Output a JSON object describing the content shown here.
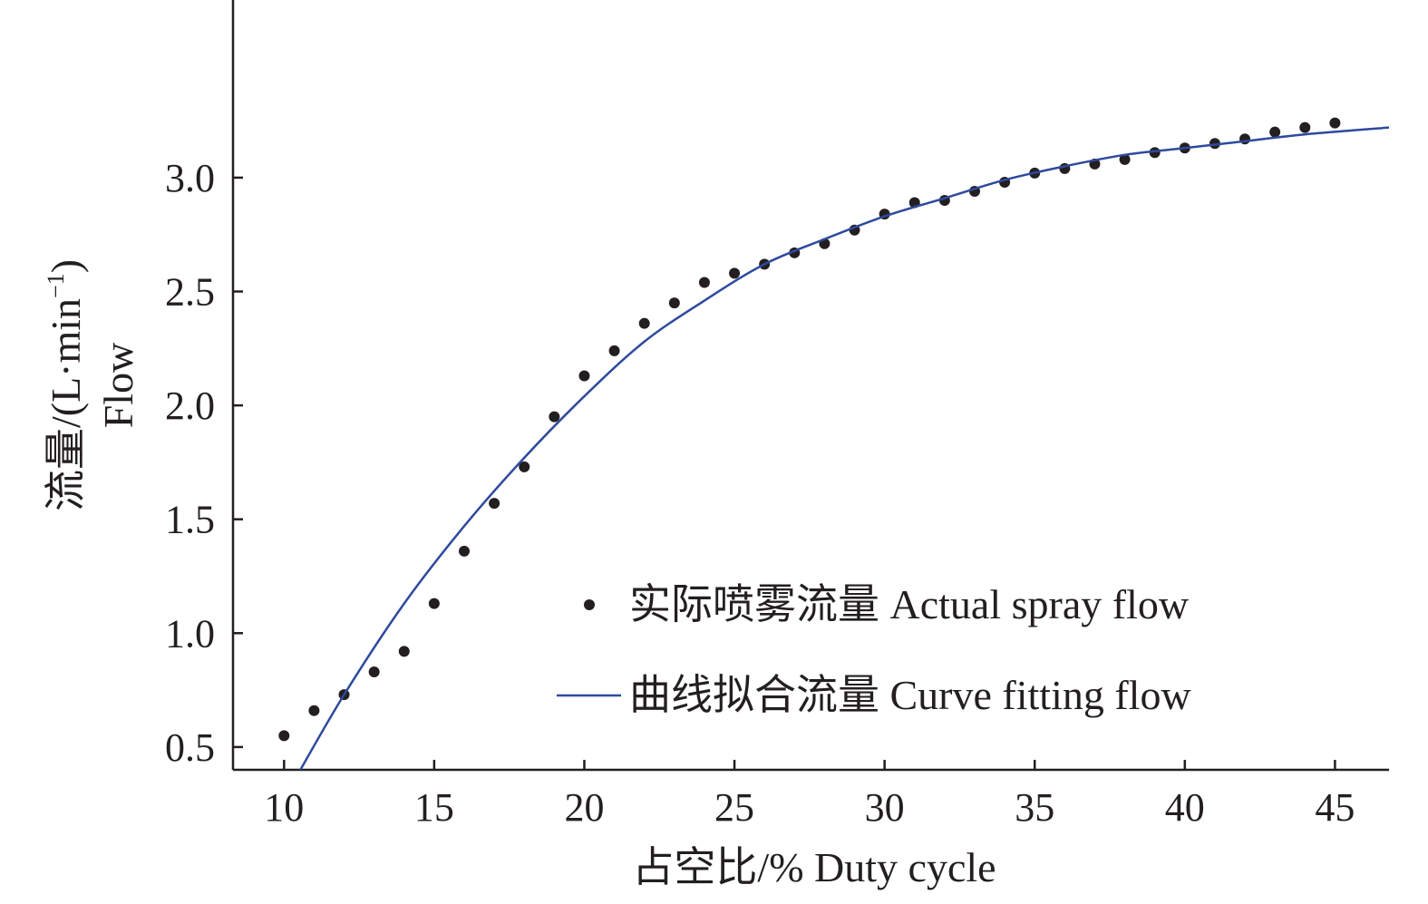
{
  "chart_data": {
    "type": "scatter",
    "xlabel": "占空比/% Duty cycle",
    "ylabel_line1": "流量/(L·min",
    "ylabel_sup": "−1",
    "ylabel_close": ")",
    "ylabel_line2": "Flow",
    "xlim": [
      8.3,
      46.8
    ],
    "ylim": [
      0.4,
      3.78
    ],
    "xticks": [
      10,
      15,
      20,
      25,
      30,
      35,
      40,
      45
    ],
    "xtick_labels": [
      "10",
      "15",
      "20",
      "25",
      "30",
      "35",
      "40",
      "45"
    ],
    "yticks": [
      0.5,
      1.0,
      1.5,
      2.0,
      2.5,
      3.0
    ],
    "ytick_labels": [
      "0.5",
      "1.0",
      "1.5",
      "2.0",
      "2.5",
      "3.0"
    ],
    "grid": false,
    "legend_position": "bottom-right",
    "series": [
      {
        "name": "实际喷雾流量 Actual spray flow",
        "kind": "scatter",
        "color": "#231f20",
        "x": [
          10,
          11,
          12,
          13,
          14,
          15,
          16,
          17,
          18,
          19,
          20,
          21,
          22,
          23,
          24,
          25,
          26,
          27,
          28,
          29,
          30,
          31,
          32,
          33,
          34,
          35,
          36,
          37,
          38,
          39,
          40,
          41,
          42,
          43,
          44,
          45
        ],
        "y": [
          0.55,
          0.66,
          0.73,
          0.83,
          0.92,
          1.13,
          1.36,
          1.57,
          1.73,
          1.95,
          2.13,
          2.24,
          2.36,
          2.45,
          2.54,
          2.58,
          2.62,
          2.67,
          2.71,
          2.77,
          2.84,
          2.89,
          2.9,
          2.94,
          2.98,
          3.02,
          3.04,
          3.06,
          3.08,
          3.11,
          3.13,
          3.15,
          3.17,
          3.2,
          3.22,
          3.24
        ]
      },
      {
        "name": "曲线拟合流量 Curve fitting flow",
        "kind": "line",
        "color": "#2e4a9e",
        "x": [
          10.5,
          12,
          14,
          16,
          18,
          20,
          22,
          24,
          26,
          28,
          30,
          32,
          34,
          36,
          38,
          40,
          42,
          44,
          46.8
        ],
        "y": [
          0.39,
          0.73,
          1.13,
          1.47,
          1.77,
          2.04,
          2.28,
          2.46,
          2.62,
          2.73,
          2.83,
          2.91,
          2.99,
          3.05,
          3.1,
          3.13,
          3.16,
          3.19,
          3.22
        ]
      }
    ]
  }
}
